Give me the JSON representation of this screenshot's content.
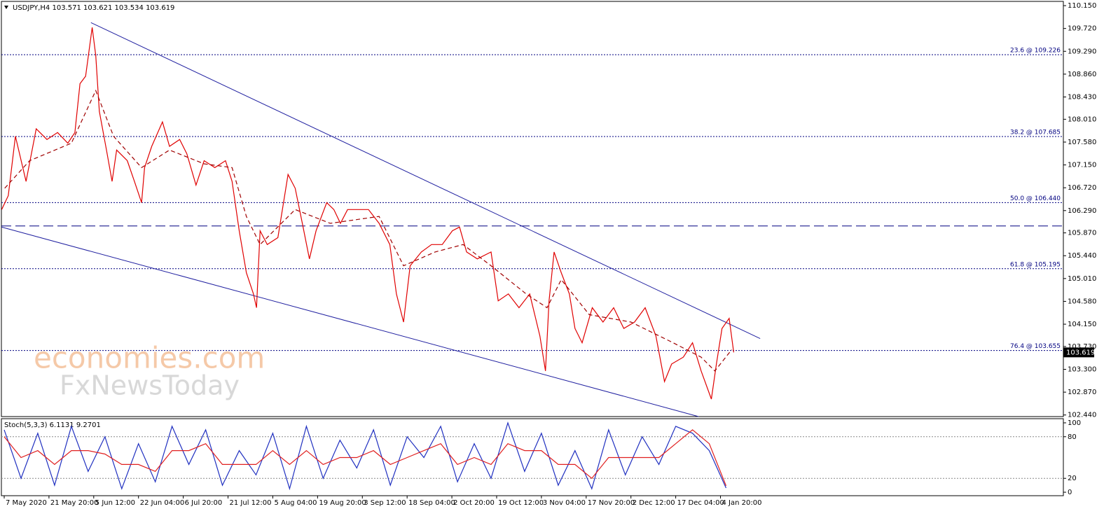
{
  "chart_data": [
    {
      "type": "line",
      "title": "USDJPY,H4  103.571 103.621 103.534 103.619",
      "xlim": [
        -5.5,
        2082
      ],
      "ylim": [
        102.41,
        110.23
      ],
      "yticks": [
        {
          "value": 102.44,
          "label": "102.440"
        },
        {
          "value": 102.87,
          "label": "102.870"
        },
        {
          "value": 103.3,
          "label": "103.300"
        },
        {
          "value": 103.73,
          "label": "103.730"
        },
        {
          "value": 104.15,
          "label": "104.150"
        },
        {
          "value": 104.58,
          "label": "104.580"
        },
        {
          "value": 105.01,
          "label": "105.010"
        },
        {
          "value": 105.44,
          "label": "105.440"
        },
        {
          "value": 105.87,
          "label": "105.870"
        },
        {
          "value": 106.29,
          "label": "106.290"
        },
        {
          "value": 106.72,
          "label": "106.720"
        },
        {
          "value": 107.15,
          "label": "107.150"
        },
        {
          "value": 107.58,
          "label": "107.580"
        },
        {
          "value": 108.01,
          "label": "108.010"
        },
        {
          "value": 108.43,
          "label": "108.430"
        },
        {
          "value": 108.86,
          "label": "108.860"
        },
        {
          "value": 109.29,
          "label": "109.290"
        },
        {
          "value": 109.72,
          "label": "109.720"
        },
        {
          "value": 110.15,
          "label": "110.150"
        }
      ],
      "series": [
        {
          "color": "#e00000",
          "style": "solid",
          "x": [
            -5,
            8,
            22,
            43,
            63,
            84,
            105,
            125,
            139,
            149,
            160,
            173,
            180,
            187,
            201,
            212,
            221,
            242,
            256,
            270,
            276,
            290,
            311,
            325,
            345,
            359,
            377,
            393,
            414,
            435,
            448,
            462,
            476,
            490,
            496,
            503,
            517,
            538,
            558,
            572,
            586,
            600,
            613,
            634,
            648,
            661,
            675,
            696,
            716,
            737,
            758,
            771,
            785,
            798,
            820,
            840,
            861,
            881,
            895,
            909,
            930,
            957,
            971,
            991,
            1012,
            1033,
            1053,
            1064,
            1071,
            1081,
            1095,
            1111,
            1122,
            1136,
            1156,
            1177,
            1198,
            1218,
            1239,
            1260,
            1281,
            1298,
            1312,
            1335,
            1353,
            1370,
            1390,
            1400,
            1411,
            1425,
            1434
          ],
          "values": [
            106.31,
            106.57,
            107.69,
            106.84,
            107.83,
            107.63,
            107.76,
            107.56,
            107.76,
            108.68,
            108.82,
            109.74,
            109.21,
            108.16,
            107.43,
            106.84,
            107.43,
            107.23,
            106.84,
            106.44,
            107.1,
            107.5,
            107.96,
            107.5,
            107.63,
            107.36,
            106.77,
            107.23,
            107.1,
            107.23,
            106.84,
            105.91,
            105.12,
            104.72,
            104.46,
            105.91,
            105.65,
            105.78,
            106.97,
            106.71,
            106.05,
            105.38,
            105.91,
            106.44,
            106.31,
            106.05,
            106.31,
            106.31,
            106.31,
            106.05,
            105.65,
            104.72,
            104.19,
            105.25,
            105.51,
            105.65,
            105.65,
            105.91,
            105.98,
            105.51,
            105.38,
            105.51,
            104.59,
            104.72,
            104.46,
            104.72,
            103.93,
            103.27,
            104.59,
            105.51,
            105.12,
            104.72,
            104.07,
            103.8,
            104.46,
            104.19,
            104.46,
            104.07,
            104.19,
            104.46,
            103.93,
            103.07,
            103.4,
            103.53,
            103.8,
            103.27,
            102.74,
            103.4,
            104.07,
            104.26,
            103.619
          ]
        },
        {
          "color": "#a00000",
          "style": "dashed",
          "x": [
            1,
            50,
            132,
            180,
            215,
            270,
            325,
            393,
            448,
            476,
            503,
            572,
            641,
            737,
            785,
            847,
            902,
            957,
            1026,
            1067,
            1095,
            1150,
            1232,
            1315,
            1370,
            1397,
            1430
          ],
          "values": [
            106.71,
            107.23,
            107.56,
            108.55,
            107.69,
            107.1,
            107.43,
            107.17,
            107.1,
            106.18,
            105.65,
            106.31,
            106.05,
            106.18,
            105.25,
            105.51,
            105.65,
            105.25,
            104.72,
            104.46,
            104.99,
            104.33,
            104.19,
            103.8,
            103.53,
            103.27,
            103.67
          ]
        }
      ],
      "trendlines": [
        {
          "color": "#2020a0",
          "x": [
            170.5,
            1486
          ],
          "values": [
            109.83,
            103.88
          ]
        },
        {
          "color": "#2020a0",
          "x": [
            -5.5,
            1365
          ],
          "values": [
            105.98,
            102.41
          ]
        }
      ],
      "hlines": [
        {
          "value": 106.0,
          "color": "#000080",
          "style": "dashed"
        }
      ],
      "fib_levels": [
        {
          "value": 109.226,
          "label": "23.6 @ 109.226"
        },
        {
          "value": 107.685,
          "label": "38.2 @ 107.685"
        },
        {
          "value": 106.44,
          "label": "50.0 @ 106.440"
        },
        {
          "value": 105.195,
          "label": "61.8 @ 105.195"
        },
        {
          "value": 103.655,
          "label": "76.4 @ 103.655"
        }
      ],
      "last_price": 103.619,
      "watermark": [
        "economies.com",
        "FxNewsToday"
      ]
    },
    {
      "type": "line",
      "title": "Stoch(5,3,3) 6.1131 9.2701",
      "xlim": [
        -5.5,
        2082
      ],
      "ylim": [
        -5,
        106
      ],
      "yticks": [
        0,
        20,
        80,
        100
      ],
      "xticks": [
        {
          "value": 0,
          "label": "7 May 2020"
        },
        {
          "value": 88,
          "label": "21 May 20:00"
        },
        {
          "value": 176,
          "label": "5 Jun 12:00"
        },
        {
          "value": 264,
          "label": "22 Jun 04:00"
        },
        {
          "value": 352,
          "label": "6 Jul 20:00"
        },
        {
          "value": 440,
          "label": "21 Jul 12:00"
        },
        {
          "value": 528,
          "label": "5 Aug 04:00"
        },
        {
          "value": 616,
          "label": "19 Aug 20:00"
        },
        {
          "value": 704,
          "label": "3 Sep 12:00"
        },
        {
          "value": 792,
          "label": "18 Sep 04:00"
        },
        {
          "value": 880,
          "label": "2 Oct 20:00"
        },
        {
          "value": 968,
          "label": "19 Oct 12:00"
        },
        {
          "value": 1056,
          "label": "3 Nov 04:00"
        },
        {
          "value": 1144,
          "label": "17 Nov 20:00"
        },
        {
          "value": 1232,
          "label": "2 Dec 12:00"
        },
        {
          "value": 1320,
          "label": "17 Dec 04:00"
        },
        {
          "value": 1408,
          "label": "4 Jan 20:00"
        }
      ],
      "series": [
        {
          "color": "#2030c0",
          "style": "solid",
          "x": [
            0,
            33,
            66,
            99,
            132,
            165,
            198,
            231,
            264,
            297,
            330,
            363,
            396,
            429,
            462,
            495,
            528,
            561,
            594,
            627,
            660,
            693,
            726,
            759,
            792,
            825,
            858,
            891,
            924,
            957,
            990,
            1023,
            1056,
            1089,
            1122,
            1155,
            1188,
            1221,
            1254,
            1287,
            1320,
            1353,
            1386,
            1419
          ],
          "values": [
            90,
            20,
            85,
            10,
            95,
            30,
            80,
            5,
            70,
            15,
            95,
            40,
            90,
            10,
            60,
            25,
            85,
            5,
            95,
            20,
            75,
            35,
            90,
            10,
            80,
            50,
            95,
            15,
            70,
            20,
            100,
            30,
            85,
            10,
            60,
            5,
            90,
            25,
            80,
            40,
            95,
            85,
            60,
            6.1131
          ]
        },
        {
          "color": "#e02020",
          "style": "solid",
          "x": [
            0,
            33,
            66,
            99,
            132,
            165,
            198,
            231,
            264,
            297,
            330,
            363,
            396,
            429,
            462,
            495,
            528,
            561,
            594,
            627,
            660,
            693,
            726,
            759,
            792,
            825,
            858,
            891,
            924,
            957,
            990,
            1023,
            1056,
            1089,
            1122,
            1155,
            1188,
            1221,
            1254,
            1287,
            1320,
            1353,
            1386,
            1419
          ],
          "values": [
            80,
            50,
            60,
            40,
            60,
            60,
            55,
            40,
            40,
            30,
            60,
            60,
            70,
            40,
            40,
            40,
            60,
            40,
            60,
            40,
            50,
            50,
            60,
            40,
            50,
            60,
            70,
            40,
            50,
            40,
            70,
            60,
            60,
            40,
            40,
            20,
            50,
            50,
            50,
            50,
            70,
            90,
            70,
            9.2701
          ]
        }
      ]
    }
  ]
}
